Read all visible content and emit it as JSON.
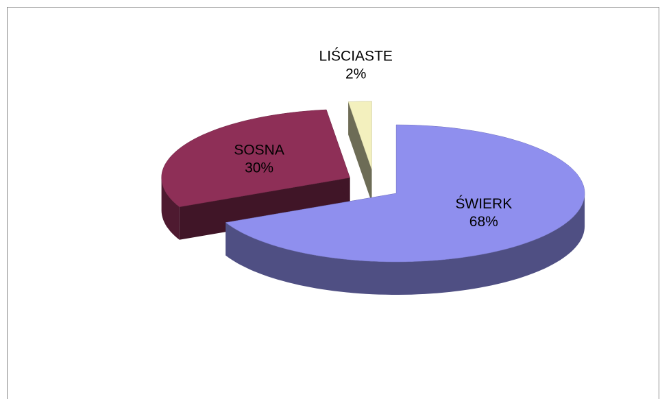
{
  "chart_data": {
    "type": "pie",
    "three_d": true,
    "exploded": true,
    "categories": [
      "ŚWIERK",
      "SOSNA",
      "LIŚCIASTE"
    ],
    "values": [
      68,
      30,
      2
    ],
    "value_labels": [
      "68%",
      "30%",
      "2%"
    ],
    "colors": [
      "#8f8fee",
      "#8e2f57",
      "#f3f0be"
    ]
  }
}
